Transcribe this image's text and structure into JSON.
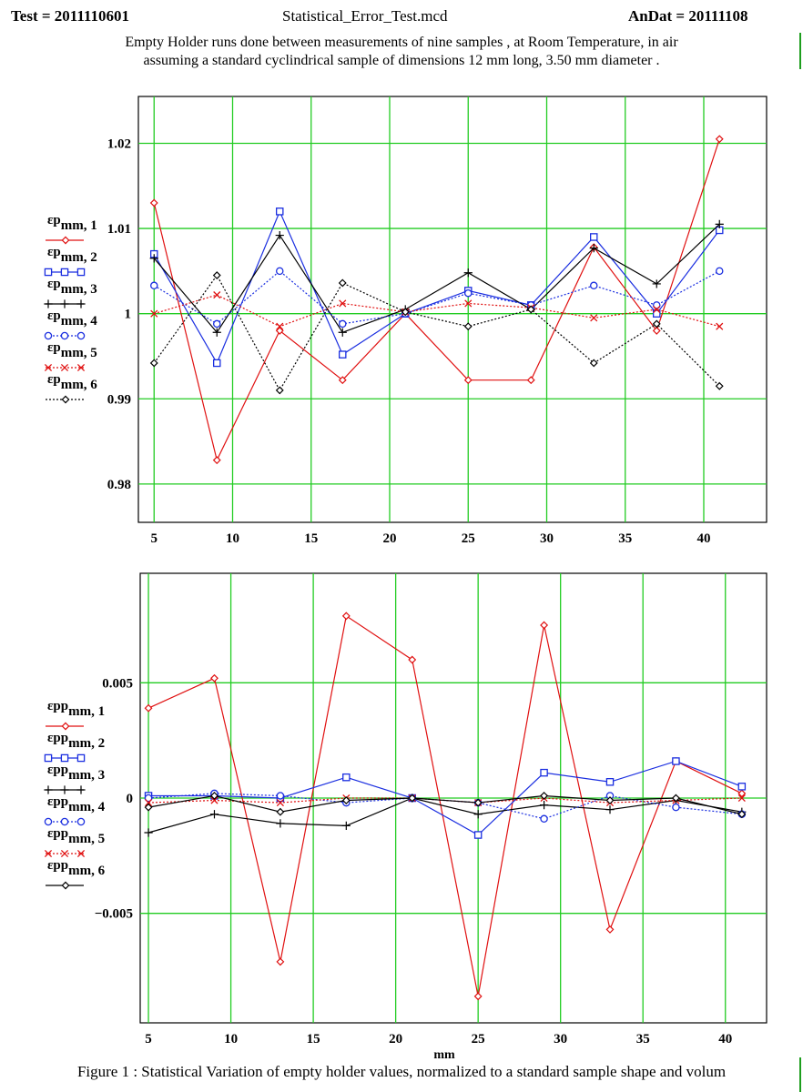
{
  "header": {
    "test_label": "Test = 2011110601",
    "file_name": "Statistical_Error_Test.mcd",
    "andat_label": "AnDat = 20111108"
  },
  "description": {
    "line1": "Empty Holder runs done between measurements of nine  samples , at Room Temperature, in air",
    "line2": "assuming a standard cyclindrical sample of dimensions 12 mm long, 3.50 mm diameter ."
  },
  "caption": "Figure 1 :  Statistical Variation of empty holder values, normalized to a standard sample shape and volum",
  "colors": {
    "grid": "#22cc22",
    "red": "#e01010",
    "blue": "#1a2ee0",
    "black": "#000000"
  },
  "chart_data": [
    {
      "type": "line",
      "x": [
        5,
        9,
        13,
        17,
        21,
        25,
        29,
        33,
        37,
        41
      ],
      "xticks": [
        5,
        10,
        15,
        20,
        25,
        30,
        35,
        40
      ],
      "yticks": [
        0.98,
        0.99,
        1,
        1.01,
        1.02
      ],
      "ytick_labels": [
        "0.98",
        "0.99",
        "1",
        "1.01",
        "1.02"
      ],
      "xlim": [
        4,
        44
      ],
      "ylim": [
        0.9755,
        1.0255
      ],
      "xlabel": "",
      "grid": true,
      "legend_position": "left",
      "series": [
        {
          "name": "εpmm, 1",
          "color": "#e01010",
          "dash": "",
          "marker": "diamond",
          "values": [
            1.013,
            0.9828,
            0.998,
            0.9922,
            1.0,
            0.9922,
            0.9922,
            1.0078,
            0.998,
            1.0205
          ]
        },
        {
          "name": "εpmm, 2",
          "color": "#1a2ee0",
          "dash": "",
          "marker": "square",
          "values": [
            1.007,
            0.9942,
            1.012,
            0.9952,
            1.0,
            1.0027,
            1.001,
            1.009,
            1.0,
            1.0098
          ]
        },
        {
          "name": "εpmm, 3",
          "color": "#000000",
          "dash": "",
          "marker": "plus",
          "values": [
            1.0065,
            0.9978,
            1.0092,
            0.9978,
            1.0005,
            1.0048,
            1.0005,
            1.0077,
            1.0035,
            1.0105
          ]
        },
        {
          "name": "εpmm, 4",
          "color": "#1a2ee0",
          "dash": "2,2",
          "marker": "circle",
          "values": [
            1.0033,
            0.9988,
            1.005,
            0.9988,
            1.0,
            1.0024,
            1.001,
            1.0033,
            1.001,
            1.005
          ]
        },
        {
          "name": "εpmm, 5",
          "color": "#e01010",
          "dash": "2,2",
          "marker": "cross",
          "values": [
            1.0,
            1.0022,
            0.9985,
            1.0012,
            1.0002,
            1.0012,
            1.0007,
            0.9995,
            1.0005,
            0.9985
          ]
        },
        {
          "name": "εpmm, 6",
          "color": "#000000",
          "dash": "2,2",
          "marker": "diamond",
          "values": [
            0.9942,
            1.0045,
            0.991,
            1.0036,
            1.0002,
            0.9985,
            1.0005,
            0.9942,
            0.9988,
            0.9915
          ]
        }
      ]
    },
    {
      "type": "line",
      "x": [
        5,
        9,
        13,
        17,
        21,
        25,
        29,
        33,
        37,
        41
      ],
      "xticks": [
        5,
        10,
        15,
        20,
        25,
        30,
        35,
        40
      ],
      "yticks": [
        -0.005,
        0,
        0.005
      ],
      "ytick_labels": [
        "−0.005",
        "0",
        "0.005"
      ],
      "xlim": [
        4.5,
        42.5
      ],
      "ylim": [
        -0.00975,
        0.00975
      ],
      "xlabel": "mm",
      "grid": true,
      "legend_position": "left",
      "series": [
        {
          "name": "εppmm, 1",
          "color": "#e01010",
          "dash": "",
          "marker": "diamond",
          "values": [
            0.0039,
            0.0052,
            -0.0071,
            0.0079,
            0.006,
            -0.0086,
            0.0075,
            -0.0057,
            0.0016,
            0.0002
          ]
        },
        {
          "name": "εppmm, 2",
          "color": "#1a2ee0",
          "dash": "",
          "marker": "square",
          "values": [
            0.0001,
            0.0001,
            0.0,
            0.0009,
            0.0,
            -0.0016,
            0.0011,
            0.0007,
            0.0016,
            0.0005
          ]
        },
        {
          "name": "εppmm, 3",
          "color": "#000000",
          "dash": "",
          "marker": "plus",
          "values": [
            -0.0015,
            -0.0007,
            -0.0011,
            -0.0012,
            0.0,
            -0.0007,
            -0.0003,
            -0.0005,
            -0.0001,
            -0.0006
          ]
        },
        {
          "name": "εppmm, 4",
          "color": "#1a2ee0",
          "dash": "2,2",
          "marker": "circle",
          "values": [
            0.0,
            0.0002,
            0.0001,
            -0.0002,
            0.0,
            -0.0002,
            -0.0009,
            0.0001,
            -0.0004,
            -0.0007
          ]
        },
        {
          "name": "εppmm, 5",
          "color": "#e01010",
          "dash": "2,2",
          "marker": "cross",
          "values": [
            -0.0002,
            -0.0001,
            -0.0002,
            0.0,
            0.0,
            -0.0002,
            0.0,
            -0.0002,
            -0.0001,
            0.0
          ]
        },
        {
          "name": "εppmm, 6",
          "color": "#000000",
          "dash": "",
          "marker": "diamond",
          "values": [
            -0.0004,
            0.0001,
            -0.0006,
            -0.0001,
            0.0,
            -0.0002,
            0.0001,
            -0.0001,
            0.0,
            -0.0007
          ]
        }
      ]
    }
  ]
}
